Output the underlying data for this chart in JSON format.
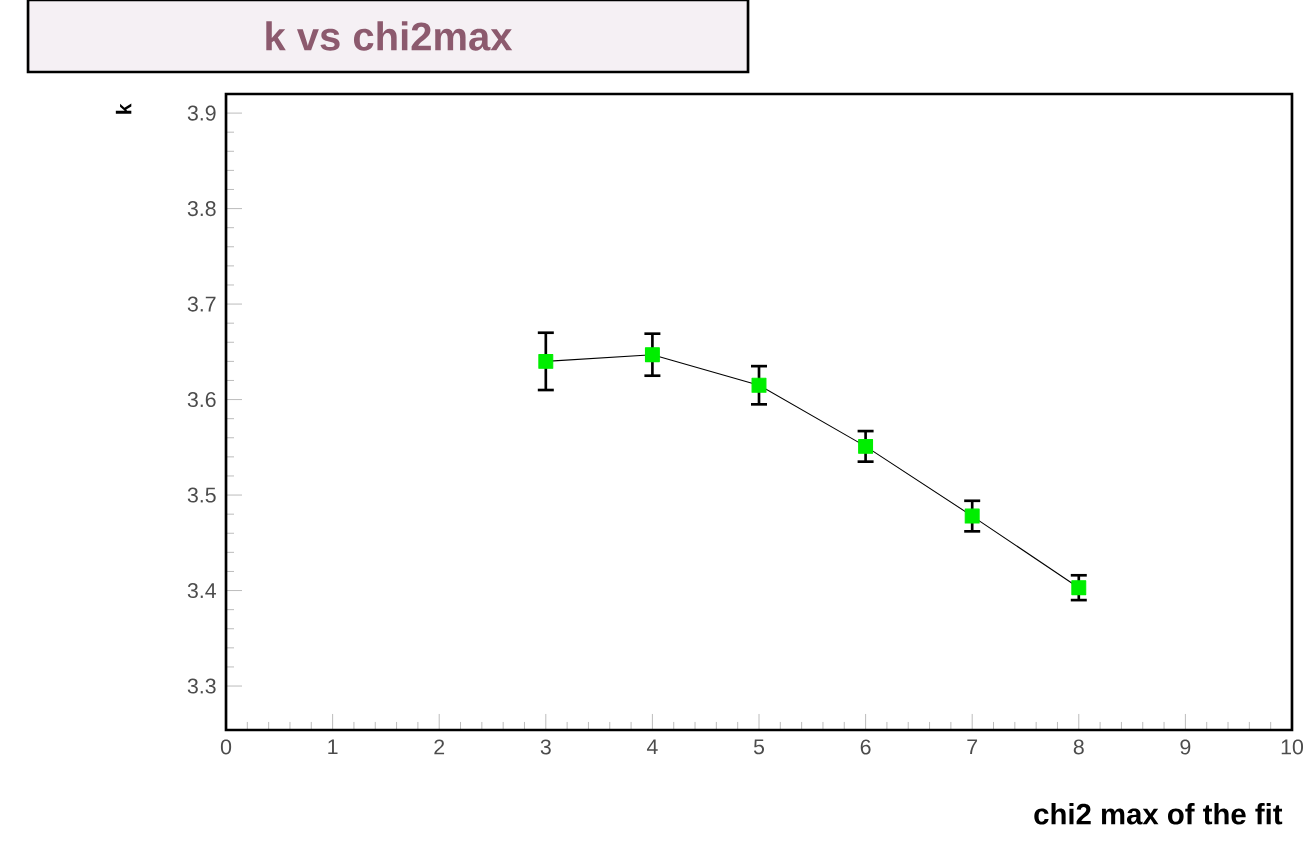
{
  "chart_data": {
    "type": "line",
    "title": "k vs chi2max",
    "xlabel": "chi2 max of the fit",
    "ylabel": "k",
    "x": [
      3,
      4,
      5,
      6,
      7,
      8
    ],
    "series": [
      {
        "color": "#00ee00",
        "values": [
          3.64,
          3.647,
          3.615,
          3.551,
          3.478,
          3.403
        ],
        "errors": [
          0.03,
          0.022,
          0.02,
          0.016,
          0.016,
          0.013
        ]
      }
    ],
    "marker": "square",
    "line_style": "solid",
    "grid": false,
    "xlim": [
      0,
      10
    ],
    "ylim": [
      3.254,
      3.92
    ],
    "xticks": [
      0,
      1,
      2,
      3,
      4,
      5,
      6,
      7,
      8,
      9,
      10
    ],
    "yticks": [
      3.3,
      3.4,
      3.5,
      3.6,
      3.7,
      3.8,
      3.9
    ]
  }
}
